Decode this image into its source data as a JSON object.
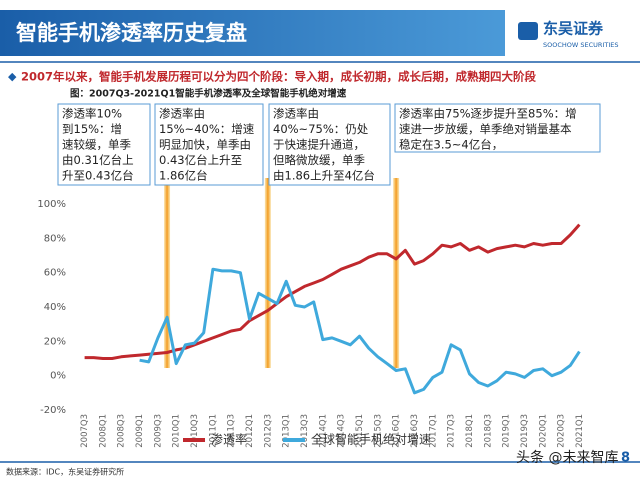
{
  "header": {
    "title": "智能手机渗透率历史复盘",
    "logo_name": "东吴证券",
    "logo_sub": "SOOCHOW SECURITIES"
  },
  "bullet": "2007年以来，智能手机发展历程可以分为四个阶段：导入期，成长初期，成长后期，成熟期四大阶段",
  "annotations": [
    [
      "渗透率10%",
      "到15%：增",
      "速较缓，单季",
      "由0.31亿台上",
      "升至0.43亿台"
    ],
    [
      "渗透率由",
      "15%~40%：增速",
      "明显加快，单季由",
      "0.43亿台上升至",
      "1.86亿台"
    ],
    [
      "渗透率由",
      "40%~75%：仍处",
      "于快速提升通道，",
      "但略微放缓，单季",
      "由1.86上升至4亿台"
    ],
    [
      "渗透率由75%逐步提升至85%：增",
      "速进一步放缓，单季绝对销量基本",
      "稳定在3.5~4亿台，"
    ]
  ],
  "source": "数据来源：IDC，东吴证券研究所",
  "watermark": "头条 @未来智库",
  "page_number": "8",
  "chart_data": {
    "type": "line",
    "title": "图：2007Q3-2021Q1智能手机渗透率及全球智能手机绝对增速",
    "categories": [
      "2007Q3",
      null,
      "2008Q1",
      null,
      "2008Q3",
      null,
      "2009Q1",
      null,
      "2009Q3",
      null,
      "2010Q1",
      null,
      "2010Q3",
      null,
      "2011Q1",
      null,
      "2011Q3",
      null,
      "2012Q1",
      null,
      "2012Q3",
      null,
      "2013Q1",
      null,
      "2013Q3",
      null,
      "2014Q1",
      null,
      "2014Q3",
      null,
      "2015Q1",
      null,
      "2015Q3",
      null,
      "2016Q1",
      null,
      "2016Q3",
      null,
      "2017Q1",
      null,
      "2017Q3",
      null,
      "2018Q1",
      null,
      "2018Q3",
      null,
      "2019Q1",
      null,
      "2019Q3",
      null,
      "2020Q1",
      null,
      "2020Q3",
      null,
      "2021Q1"
    ],
    "series": [
      {
        "name": "渗透率",
        "color": "#c0282d",
        "values": [
          10.5,
          10.5,
          10,
          10,
          11,
          11.5,
          12,
          12.5,
          13,
          13.5,
          15,
          16,
          18,
          20,
          22,
          24,
          26,
          27,
          32,
          35,
          38,
          42,
          46,
          49,
          52,
          54,
          56,
          59,
          62,
          64,
          66,
          69,
          71,
          71,
          68,
          73,
          65,
          67,
          71,
          76,
          75,
          77,
          73,
          75,
          72,
          74,
          75,
          76,
          75,
          77,
          76,
          77,
          77,
          82,
          88
        ]
      },
      {
        "name": "全球智能手机绝对增速",
        "color": "#3fa9dc",
        "values": [
          null,
          null,
          null,
          null,
          null,
          null,
          9,
          8,
          22,
          34,
          7,
          18,
          19,
          25,
          62,
          61,
          61,
          60,
          33,
          48,
          45,
          42,
          55,
          41,
          40,
          43,
          21,
          22,
          20,
          18,
          23,
          16,
          11,
          7,
          3,
          4,
          -10,
          -8,
          -1,
          2,
          18,
          15,
          1,
          -4,
          -6,
          -3,
          2,
          1,
          -1,
          3,
          4,
          0,
          2,
          6,
          14
        ]
      }
    ],
    "ylim": [
      -20,
      100
    ],
    "yticks": [
      {
        "value": -20,
        "label": "-20%"
      },
      {
        "value": 0,
        "label": "0%"
      },
      {
        "value": 20,
        "label": "20%"
      },
      {
        "value": 40,
        "label": "40%"
      },
      {
        "value": 60,
        "label": "60%"
      },
      {
        "value": 80,
        "label": "80%"
      },
      {
        "value": 100,
        "label": "100%"
      }
    ],
    "grid": false,
    "legend": "bottom"
  }
}
